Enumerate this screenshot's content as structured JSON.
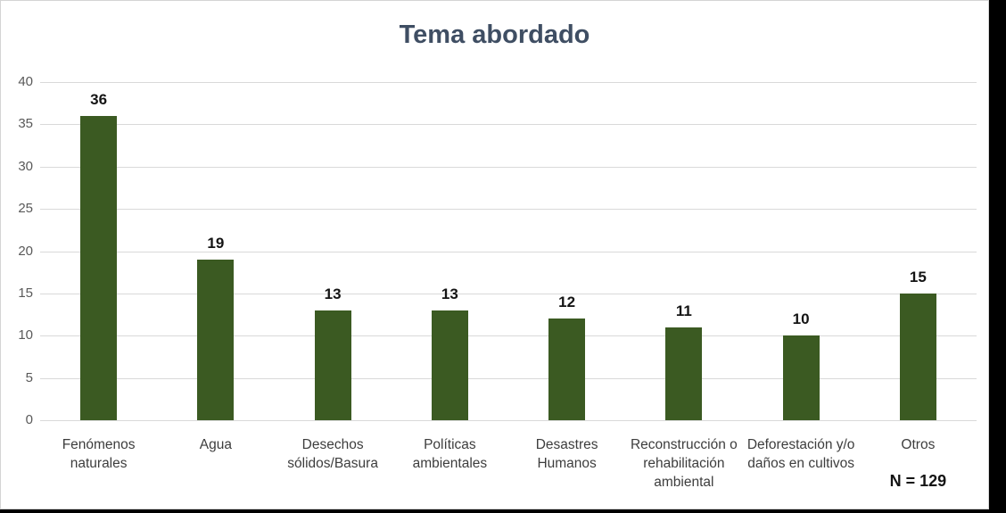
{
  "chart_data": {
    "type": "bar",
    "title": "Tema abordado",
    "categories": [
      "Fenómenos naturales",
      "Agua",
      "Desechos sólidos/Basura",
      "Políticas ambientales",
      "Desastres Humanos",
      "Reconstrucción o rehabilitación ambiental",
      "Deforestación y/o daños en cultivos",
      "Otros"
    ],
    "values": [
      36,
      19,
      13,
      13,
      12,
      11,
      10,
      15
    ],
    "xlabel": "",
    "ylabel": "",
    "ylim": [
      0,
      40
    ],
    "yticks": [
      40,
      35,
      30,
      25,
      20,
      15,
      10,
      5,
      0
    ],
    "grid": true,
    "legend": "none",
    "annotation": "N = 129",
    "colors": {
      "bar": "#3B5A22",
      "title": "#3F4E63",
      "axis_tick_labels": "#595959",
      "category_labels": "#3D3D3D",
      "value_labels": "#141414",
      "gridline": "#D9D9D9",
      "panel_border": "#D4D4D4",
      "frame_background": "#000000",
      "panel_background": "#FFFFFF"
    }
  }
}
